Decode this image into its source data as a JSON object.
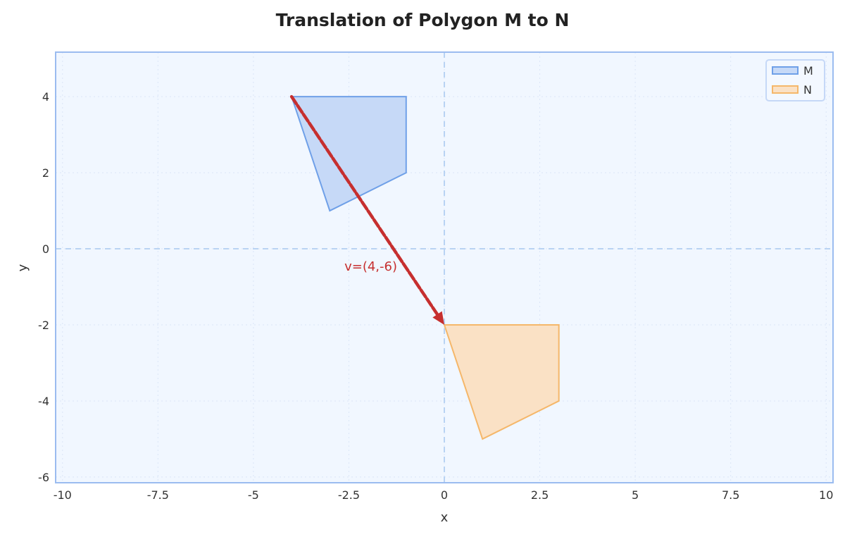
{
  "chart_data": {
    "type": "polygon",
    "title": "Translation of Polygon M to N",
    "xlabel": "x",
    "ylabel": "y",
    "xlim": [
      -10.18,
      10.18
    ],
    "ylim": [
      -6.15,
      5.17
    ],
    "x_ticks": [
      -10,
      -7.5,
      -5,
      -2.5,
      0,
      2.5,
      5,
      7.5,
      10
    ],
    "x_tick_labels": [
      "-10",
      "-7.5",
      "-5",
      "-2.5",
      "0",
      "2.5",
      "5",
      "7.5",
      "10"
    ],
    "y_ticks": [
      -6,
      -4,
      -2,
      0,
      2,
      4
    ],
    "y_tick_labels": [
      "-6",
      "-4",
      "-2",
      "0",
      "2",
      "4"
    ],
    "grid": true,
    "legend_position": "upper right",
    "series": [
      {
        "name": "M",
        "vertices": [
          [
            -4,
            4
          ],
          [
            -1,
            4
          ],
          [
            -1,
            2
          ],
          [
            -3,
            1
          ]
        ],
        "fill": "#c6d9f7",
        "stroke": "#6fa0e8"
      },
      {
        "name": "N",
        "vertices": [
          [
            0,
            -2
          ],
          [
            3,
            -2
          ],
          [
            3,
            -4
          ],
          [
            1,
            -5
          ]
        ],
        "fill": "#fae1c5",
        "stroke": "#f5b76a"
      }
    ],
    "annotations": [
      {
        "type": "arrow",
        "from": [
          -4,
          4
        ],
        "to": [
          0,
          -2
        ],
        "style": "dashed",
        "color": "#c62f2f",
        "label": "v=(4,-6)",
        "label_pos": [
          -2,
          -0.3
        ]
      }
    ]
  },
  "legend": {
    "items": [
      {
        "label": "M"
      },
      {
        "label": "N"
      }
    ]
  },
  "colors": {
    "plot_bg": "#f1f7ff",
    "spine": "#9bbcf0",
    "arrow": "#c62f2f"
  }
}
